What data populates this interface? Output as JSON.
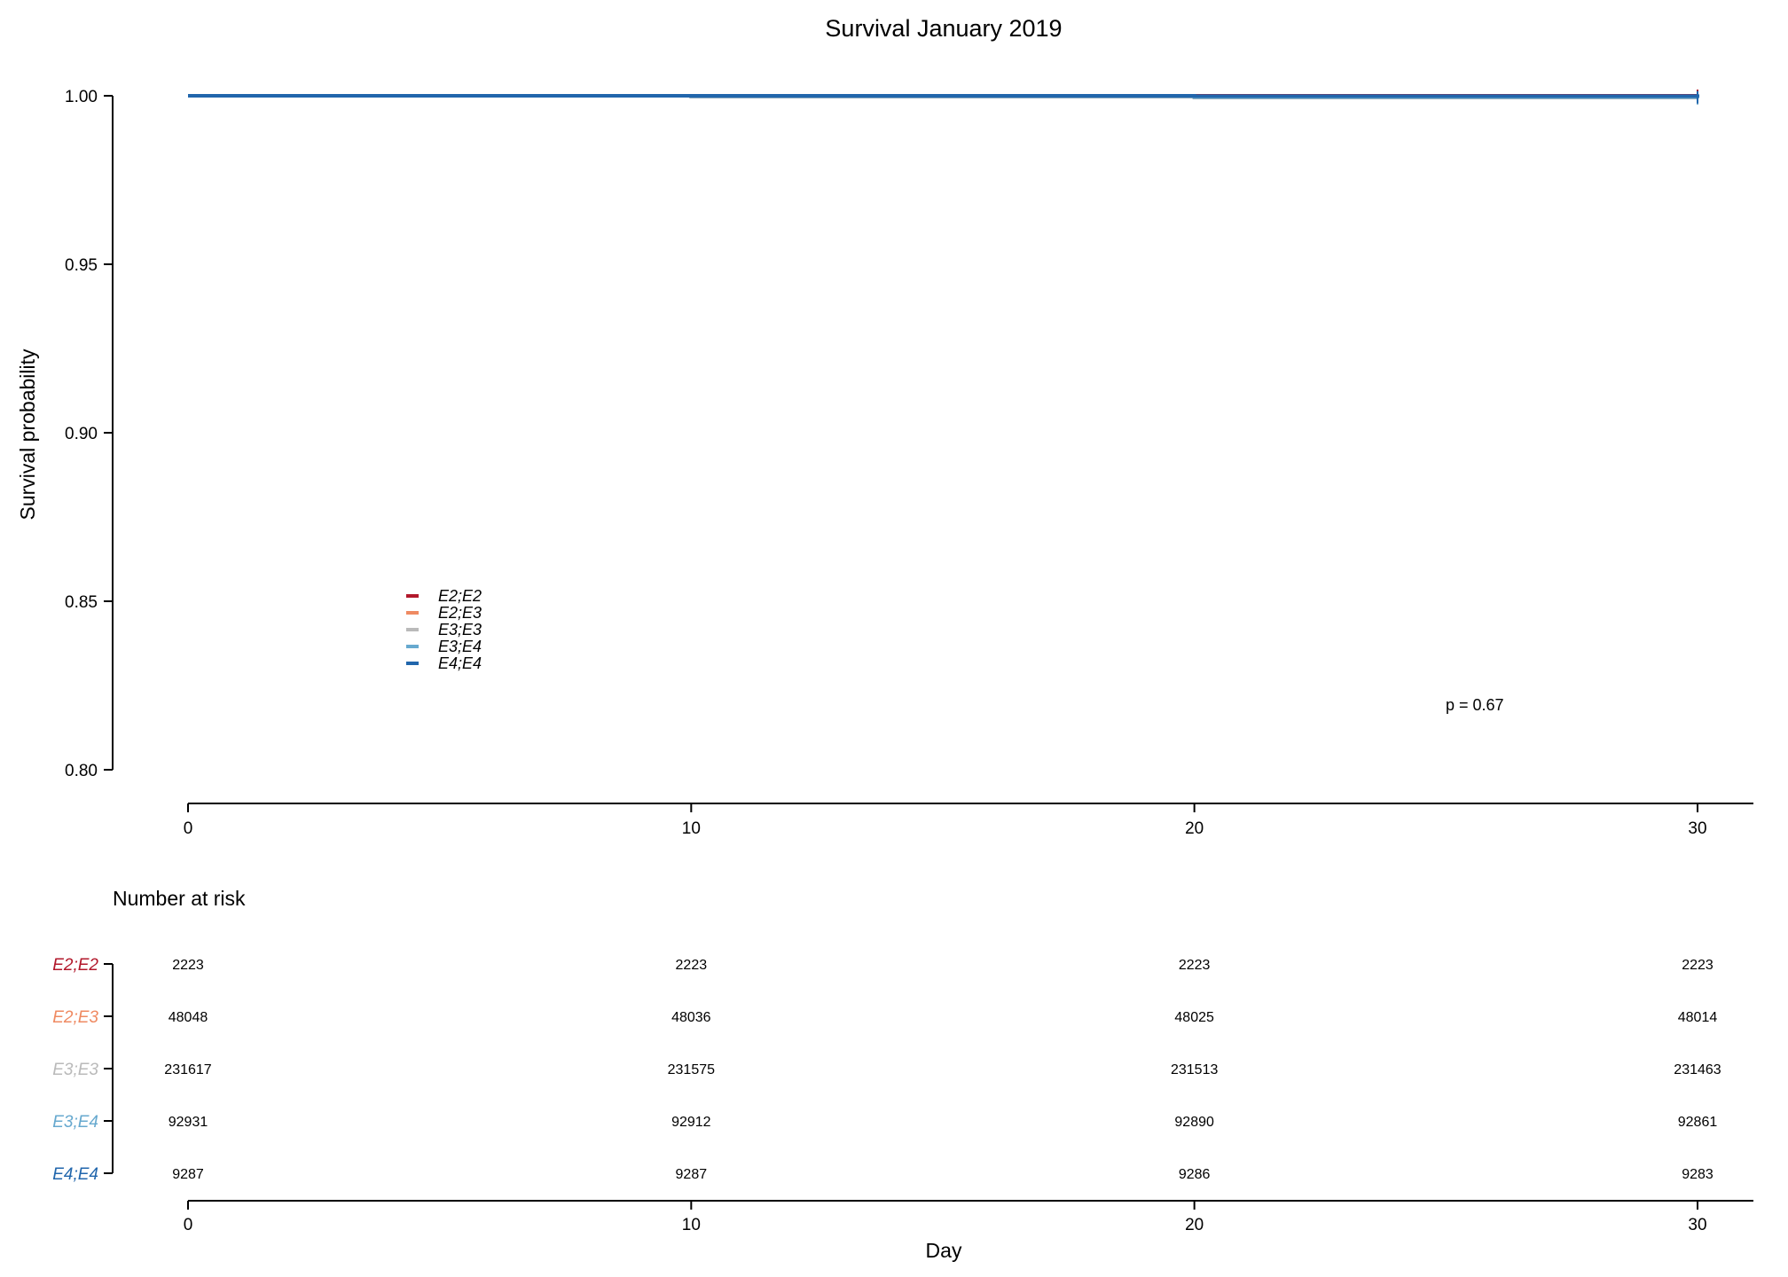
{
  "chart_data": {
    "type": "line",
    "title": "Survival January 2019",
    "ylabel": "Survival probability",
    "xlabel": "Day",
    "xlim": [
      0,
      30
    ],
    "ylim": [
      0.8,
      1.0
    ],
    "x_ticks": [
      0,
      10,
      20,
      30
    ],
    "y_ticks": [
      "0.80",
      "0.85",
      "0.90",
      "0.95",
      "1.00"
    ],
    "grid": false,
    "legend_position": "bottom-left",
    "p_value_text": "p = 0.67",
    "series": [
      {
        "name": "E2;E2",
        "color": "#b2182b",
        "x": [
          0,
          30
        ],
        "y": [
          1.0,
          1.0
        ]
      },
      {
        "name": "E2;E3",
        "color": "#ef8a62",
        "x": [
          0,
          10,
          20,
          30
        ],
        "y": [
          1.0,
          0.99975,
          0.99952,
          0.99929
        ]
      },
      {
        "name": "E3;E3",
        "color": "#bababa",
        "x": [
          0,
          10,
          20,
          30
        ],
        "y": [
          1.0,
          0.99982,
          0.99955,
          0.99934
        ]
      },
      {
        "name": "E3;E4",
        "color": "#67a9cf",
        "x": [
          0,
          10,
          20,
          30
        ],
        "y": [
          1.0,
          0.9998,
          0.99956,
          0.99925
        ]
      },
      {
        "name": "E4;E4",
        "color": "#2166ac",
        "x": [
          0,
          10,
          20,
          30
        ],
        "y": [
          1.0,
          1.0,
          0.99989,
          0.99957
        ]
      }
    ],
    "risk_table": {
      "title": "Number at risk",
      "times": [
        0,
        10,
        20,
        30
      ],
      "rows": [
        {
          "group": "E2;E2",
          "color": "#b2182b",
          "values": [
            "2223",
            "2223",
            "2223",
            "2223"
          ]
        },
        {
          "group": "E2;E3",
          "color": "#ef8a62",
          "values": [
            "48048",
            "48036",
            "48025",
            "48014"
          ]
        },
        {
          "group": "E3;E3",
          "color": "#bababa",
          "values": [
            "231617",
            "231575",
            "231513",
            "231463"
          ]
        },
        {
          "group": "E3;E4",
          "color": "#67a9cf",
          "values": [
            "92931",
            "92912",
            "92890",
            "92861"
          ]
        },
        {
          "group": "E4;E4",
          "color": "#2166ac",
          "values": [
            "9287",
            "9287",
            "9286",
            "9283"
          ]
        }
      ],
      "x_ticks": [
        0,
        10,
        20,
        30
      ]
    }
  }
}
